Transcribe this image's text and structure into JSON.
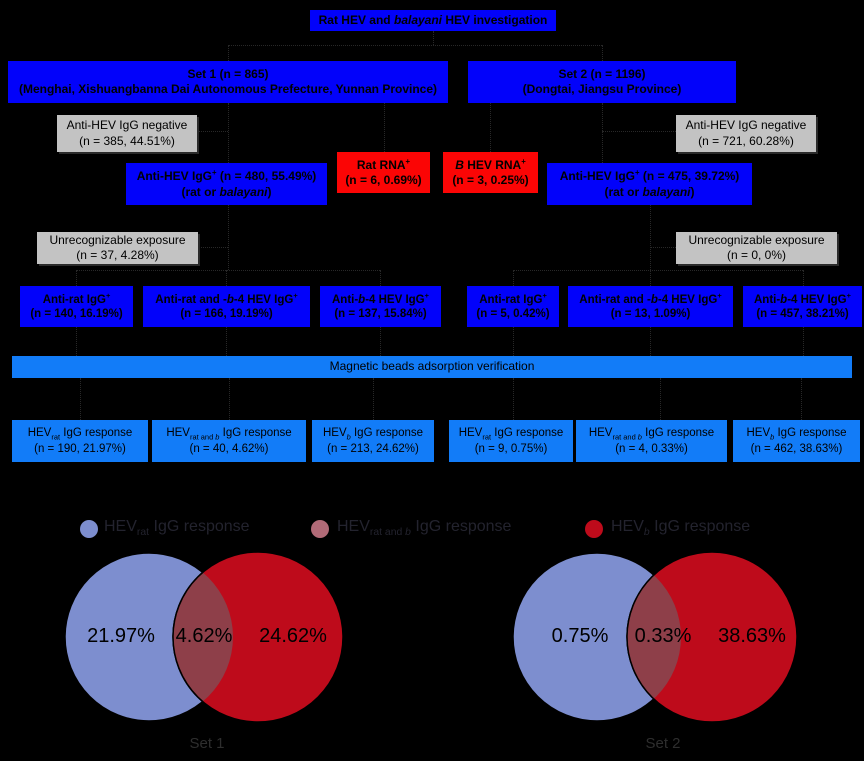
{
  "colors": {
    "flow_blue": "#0202fa",
    "azure": "#127cf8",
    "flow_red": "#fb0505",
    "gray": "#c3c3c3",
    "venn_blue": "#7d8ecf",
    "venn_red": "#be0b1b",
    "venn_overlap": "#8e3f49",
    "legend_mauve": "#b16a77"
  },
  "flow": {
    "title": [
      {
        "t": "Rat HEV and "
      },
      {
        "t": "balayani",
        "i": true
      },
      {
        "t": " HEV investigation"
      }
    ],
    "set1": {
      "line1": "Set 1 (n = 865)",
      "line2": "(Menghai, Xishuangbanna Dai Autonomous Prefecture, Yunnan Province)"
    },
    "set2": {
      "line1": "Set 2 (n = 1196)",
      "line2": "(Dongtai, Jiangsu Province)"
    },
    "neg_left": {
      "line1": "Anti-HEV IgG negative",
      "line2": "(n = 385, 44.51%)"
    },
    "neg_right": {
      "line1": "Anti-HEV IgG negative",
      "line2": "(n = 721, 60.28%)"
    },
    "pos_left": {
      "line1": [
        {
          "t": "Anti-HEV IgG"
        },
        {
          "t": "+",
          "sup": true
        },
        {
          "t": " (n = 480, 55.49%)"
        }
      ],
      "line2": [
        {
          "t": "(rat or "
        },
        {
          "t": "balayani",
          "i": true
        },
        {
          "t": ")"
        }
      ]
    },
    "pos_right": {
      "line1": [
        {
          "t": "Anti-HEV IgG"
        },
        {
          "t": "+",
          "sup": true
        },
        {
          "t": " (n = 475, 39.72%)"
        }
      ],
      "line2": [
        {
          "t": "(rat or "
        },
        {
          "t": "balayani",
          "i": true
        },
        {
          "t": ")"
        }
      ]
    },
    "rna_rat": {
      "line1": [
        {
          "t": "Rat RNA"
        },
        {
          "t": "+",
          "sup": true
        }
      ],
      "line2": "(n = 6, 0.69%)"
    },
    "rna_b": {
      "line1": [
        {
          "t": "B",
          "i": true
        },
        {
          "t": " HEV RNA"
        },
        {
          "t": "+",
          "sup": true
        }
      ],
      "line2": "(n = 3, 0.25%)"
    },
    "unrecog_left": {
      "line1": "Unrecognizable exposure",
      "line2": "(n = 37, 4.28%)"
    },
    "unrecog_right": {
      "line1": "Unrecognizable exposure",
      "line2": "(n = 0, 0%)"
    },
    "serotype_boxes": [
      {
        "line1": [
          {
            "t": "Anti-rat IgG"
          },
          {
            "t": "+",
            "sup": true
          }
        ],
        "line2": "(n = 140, 16.19%)"
      },
      {
        "line1": [
          {
            "t": "Anti-rat and -"
          },
          {
            "t": "b",
            "i": true
          },
          {
            "t": "-4 HEV IgG"
          },
          {
            "t": "+",
            "sup": true
          }
        ],
        "line2": "(n = 166, 19.19%)"
      },
      {
        "line1": [
          {
            "t": "Anti-"
          },
          {
            "t": "b",
            "i": true
          },
          {
            "t": "-4 HEV IgG"
          },
          {
            "t": "+",
            "sup": true
          }
        ],
        "line2": "(n = 137, 15.84%)"
      },
      {
        "line1": [
          {
            "t": "Anti-rat IgG"
          },
          {
            "t": "+",
            "sup": true
          }
        ],
        "line2": "(n = 5, 0.42%)"
      },
      {
        "line1": [
          {
            "t": "Anti-rat and -"
          },
          {
            "t": "b",
            "i": true
          },
          {
            "t": "-4 HEV IgG"
          },
          {
            "t": "+",
            "sup": true
          }
        ],
        "line2": "(n = 13, 1.09%)"
      },
      {
        "line1": [
          {
            "t": "Anti-"
          },
          {
            "t": "b",
            "i": true
          },
          {
            "t": "-4 HEV IgG"
          },
          {
            "t": "+",
            "sup": true
          }
        ],
        "line2": "(n = 457, 38.21%)"
      }
    ],
    "magnetic_bar": "Magnetic beads adsorption verification",
    "response_boxes": [
      {
        "line1": [
          {
            "t": "HEV"
          },
          {
            "t": "rat",
            "sub": true
          },
          {
            "t": " IgG response"
          }
        ],
        "line2": "(n = 190, 21.97%)"
      },
      {
        "line1": [
          {
            "t": "HEV"
          },
          {
            "t": "rat and ",
            "sub": true
          },
          {
            "t": "b",
            "sub": true,
            "i": true
          },
          {
            "t": " IgG response"
          }
        ],
        "line2": "(n = 40, 4.62%)"
      },
      {
        "line1": [
          {
            "t": "HEV"
          },
          {
            "t": "b",
            "sub": true,
            "i": true
          },
          {
            "t": " IgG response"
          }
        ],
        "line2": "(n = 213, 24.62%)"
      },
      {
        "line1": [
          {
            "t": "HEV"
          },
          {
            "t": "rat",
            "sub": true
          },
          {
            "t": " IgG response"
          }
        ],
        "line2": "(n = 9, 0.75%)"
      },
      {
        "line1": [
          {
            "t": "HEV"
          },
          {
            "t": "rat and ",
            "sub": true
          },
          {
            "t": "b",
            "sub": true,
            "i": true
          },
          {
            "t": " IgG response"
          }
        ],
        "line2": "(n = 4, 0.33%)"
      },
      {
        "line1": [
          {
            "t": "HEV"
          },
          {
            "t": "b",
            "sub": true,
            "i": true
          },
          {
            "t": " IgG response"
          }
        ],
        "line2": "(n = 462, 38.63%)"
      }
    ]
  },
  "venn": {
    "legend": [
      {
        "label": [
          {
            "t": "HEV"
          },
          {
            "t": "rat",
            "sub": true
          },
          {
            "t": " IgG response"
          }
        ]
      },
      {
        "label": [
          {
            "t": "HEV"
          },
          {
            "t": "rat and ",
            "sub": true
          },
          {
            "t": "b",
            "sub": true,
            "i": true
          },
          {
            "t": " IgG response"
          }
        ]
      },
      {
        "label": [
          {
            "t": "HEV"
          },
          {
            "t": "b",
            "sub": true,
            "i": true
          },
          {
            "t": " IgG response"
          }
        ]
      }
    ],
    "left": {
      "a": "21.97%",
      "ab": "4.62%",
      "b": "24.62%",
      "caption": "Set 1"
    },
    "right": {
      "a": "0.75%",
      "ab": "0.33%",
      "b": "38.63%",
      "caption": "Set 2"
    }
  }
}
